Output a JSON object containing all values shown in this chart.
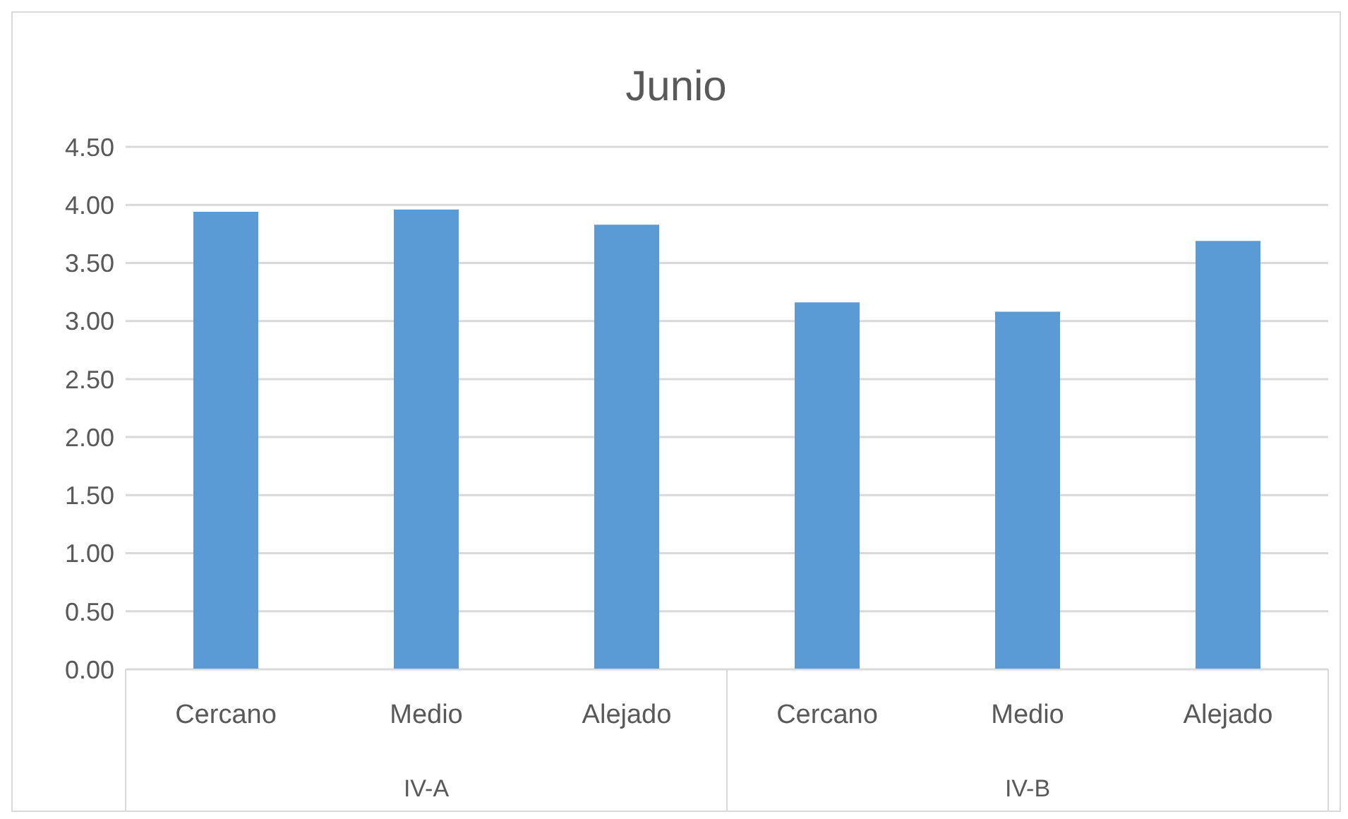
{
  "chart_data": {
    "type": "bar",
    "title": "Junio",
    "categories": [
      "Cercano",
      "Medio",
      "Alejado",
      "Cercano",
      "Medio",
      "Alejado"
    ],
    "values": [
      3.94,
      3.96,
      3.83,
      3.16,
      3.08,
      3.69
    ],
    "color": "#5b9bd5",
    "ylim": [
      0,
      4.5
    ],
    "yticks": [
      {
        "value": 0,
        "label": "0.00"
      },
      {
        "value": 0.5,
        "label": "0.50"
      },
      {
        "value": 1,
        "label": "1.00"
      },
      {
        "value": 1.5,
        "label": "1.50"
      },
      {
        "value": 2,
        "label": "2.00"
      },
      {
        "value": 2.5,
        "label": "2.50"
      },
      {
        "value": 3,
        "label": "3.00"
      },
      {
        "value": 3.5,
        "label": "3.50"
      },
      {
        "value": 4,
        "label": "4.00"
      },
      {
        "value": 4.5,
        "label": "4.50"
      }
    ],
    "grid": "y",
    "annotations": [
      "IV-A",
      "IV-B"
    ]
  }
}
